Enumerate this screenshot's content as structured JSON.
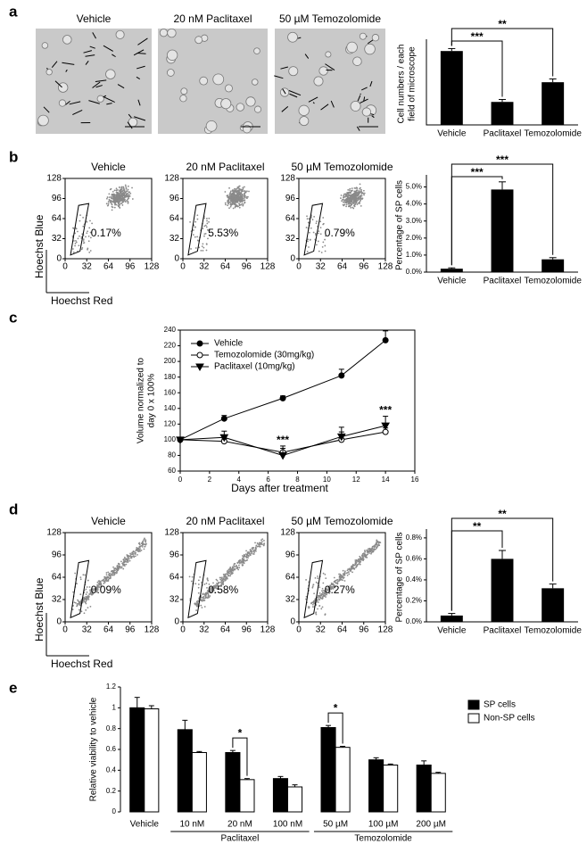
{
  "panel_letters": [
    "a",
    "b",
    "c",
    "d",
    "e"
  ],
  "micrographs": {
    "titles": [
      "Vehicle",
      "20 nM Paclitaxel",
      "50 µM Temozolomide"
    ]
  },
  "flow_panels": [
    {
      "xlabel": "Hoechst Red",
      "ylabel": "Hoechst Blue",
      "ticks": [
        0,
        32,
        64,
        96,
        128
      ],
      "plots": [
        {
          "title": "Vehicle",
          "gate_label": "0.17%"
        },
        {
          "title": "20 nM Paclitaxel",
          "gate_label": "5.53%"
        },
        {
          "title": "50 µM Temozolomide",
          "gate_label": "0.79%"
        }
      ]
    },
    {
      "xlabel": "Hoechst Red",
      "ylabel": "Hoechst Blue",
      "ticks": [
        0,
        32,
        64,
        96,
        128
      ],
      "plots": [
        {
          "title": "Vehicle",
          "gate_label": "0.09%"
        },
        {
          "title": "20 nM Paclitaxel",
          "gate_label": "0.58%"
        },
        {
          "title": "50 µM Temozolomide",
          "gate_label": "0.27%"
        }
      ]
    }
  ],
  "chart_data": [
    {
      "type": "bar",
      "ylabel": [
        "Cell numbers / each",
        "field of microscope"
      ],
      "categories": [
        "Vehicle",
        "Paclitaxel",
        "Temozolomide"
      ],
      "values": [
        90,
        28,
        52
      ],
      "errors": [
        3,
        3,
        4
      ],
      "color": "#000000",
      "ylim": [
        0,
        100
      ],
      "annotations": [
        "***",
        "**"
      ]
    },
    {
      "type": "bar",
      "ylabel": [
        "Percentage of SP cells"
      ],
      "categories": [
        "Vehicle",
        "Paclitaxel",
        "Temozolomide"
      ],
      "values": [
        0.2,
        4.85,
        0.75
      ],
      "errors": [
        0.05,
        0.45,
        0.1
      ],
      "color": "#000000",
      "ylim": [
        0,
        5.5
      ],
      "yticks": [
        {
          "value": 0,
          "label": "0.0%"
        },
        {
          "value": 1,
          "label": "1.0%"
        },
        {
          "value": 2,
          "label": "2.0%"
        },
        {
          "value": 3,
          "label": "3.0%"
        },
        {
          "value": 4,
          "label": "4.0%"
        },
        {
          "value": 5,
          "label": "5.0%"
        }
      ],
      "annotations": [
        "***",
        "***"
      ]
    },
    {
      "type": "line",
      "xlabel": "Days after treatment",
      "ylabel": [
        "Volume normalized to",
        "day 0 x 100%"
      ],
      "x": [
        0,
        3,
        7,
        11,
        14
      ],
      "xlim": [
        0,
        16
      ],
      "xticks": [
        0,
        2,
        4,
        6,
        8,
        10,
        12,
        14,
        16
      ],
      "ylim": [
        60,
        240
      ],
      "yticks": [
        60,
        80,
        100,
        120,
        140,
        160,
        180,
        200,
        220,
        240
      ],
      "series": [
        {
          "name": "Vehicle",
          "marker": "circle",
          "color": "#000000",
          "values": [
            100,
            127,
            153,
            182,
            227
          ],
          "errors": [
            0,
            4,
            3,
            8,
            12
          ]
        },
        {
          "name": "Temozolomide (30mg/kg)",
          "marker": "circle",
          "color": "#ffffff",
          "values": [
            100,
            98,
            84,
            100,
            110
          ],
          "errors": [
            0,
            3,
            5,
            10,
            5
          ]
        },
        {
          "name": "Paclitaxel (10mg/kg)",
          "marker": "triangle",
          "color": "#000000",
          "values": [
            100,
            103,
            80,
            104,
            118
          ],
          "errors": [
            0,
            8,
            12,
            12,
            12
          ]
        }
      ],
      "annotations": [
        "***",
        "***"
      ]
    },
    {
      "type": "bar",
      "ylabel": [
        "Percentage of SP cells"
      ],
      "categories": [
        "Vehicle",
        "Paclitaxel",
        "Temozolomide"
      ],
      "values": [
        0.06,
        0.6,
        0.32
      ],
      "errors": [
        0.02,
        0.08,
        0.04
      ],
      "color": "#000000",
      "ylim": [
        0,
        0.85
      ],
      "yticks": [
        {
          "value": 0,
          "label": "0.0%"
        },
        {
          "value": 0.2,
          "label": "0.2%"
        },
        {
          "value": 0.4,
          "label": "0.4%"
        },
        {
          "value": 0.6,
          "label": "0.6%"
        },
        {
          "value": 0.8,
          "label": "0.8%"
        }
      ],
      "annotations": [
        "**",
        "**"
      ]
    },
    {
      "type": "grouped_bar",
      "ylabel": [
        "Relative viability to vehicle"
      ],
      "categories": [
        "Vehicle",
        "10 nM",
        "20 nM",
        "100 nM",
        "50 µM",
        "100 µM",
        "200 µM"
      ],
      "group_labels": [
        "Paclitaxel",
        "Temozolomide"
      ],
      "ylim": [
        0,
        1.2
      ],
      "yticks": [
        0,
        0.2,
        0.4,
        0.6,
        0.8,
        1,
        1.2
      ],
      "series": [
        {
          "name": "SP cells",
          "color": "#000000",
          "values": [
            1.0,
            0.79,
            0.57,
            0.32,
            0.81,
            0.5,
            0.45
          ],
          "errors": [
            0.1,
            0.09,
            0.02,
            0.02,
            0.02,
            0.02,
            0.04
          ]
        },
        {
          "name": "Non-SP cells",
          "color": "#ffffff",
          "values": [
            0.99,
            0.57,
            0.31,
            0.24,
            0.62,
            0.45,
            0.37
          ],
          "errors": [
            0.03,
            0.01,
            0.01,
            0.02,
            0.01,
            0.01,
            0.01
          ]
        }
      ],
      "annotations": [
        "*",
        "*"
      ]
    }
  ]
}
